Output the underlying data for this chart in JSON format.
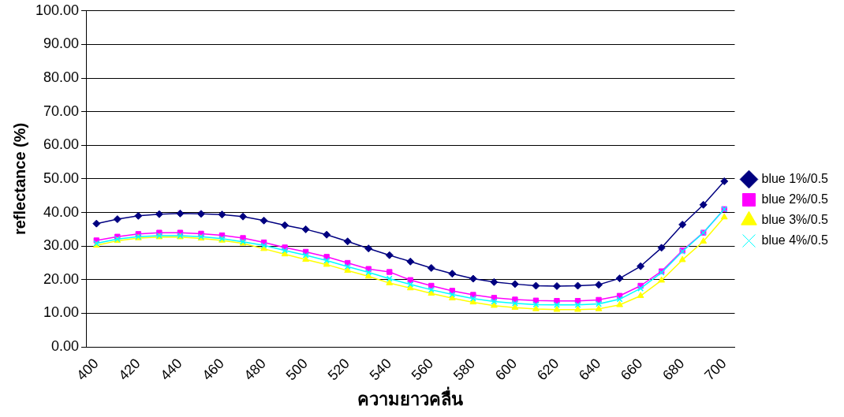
{
  "chart_data": {
    "type": "line",
    "xlabel": "ความยาวคลื่น",
    "ylabel": "reflectance (%)",
    "categories": [
      "400",
      null,
      "420",
      null,
      "440",
      null,
      "460",
      null,
      "480",
      null,
      "500",
      null,
      "520",
      null,
      "540",
      null,
      "560",
      null,
      "580",
      null,
      "600",
      null,
      "620",
      null,
      "640",
      null,
      "660",
      null,
      "680",
      null,
      "700"
    ],
    "ylim": [
      0,
      100
    ],
    "yticks": [
      {
        "value": 0,
        "label": "0.00"
      },
      {
        "value": 10,
        "label": "10.00"
      },
      {
        "value": 20,
        "label": "20.00"
      },
      {
        "value": 30,
        "label": "30.00"
      },
      {
        "value": 40,
        "label": "40.00"
      },
      {
        "value": 50,
        "label": "50.00"
      },
      {
        "value": 60,
        "label": "60.00"
      },
      {
        "value": 70,
        "label": "70.00"
      },
      {
        "value": 80,
        "label": "80.00"
      },
      {
        "value": 90,
        "label": "90.00"
      },
      {
        "value": 100,
        "label": "100.00"
      }
    ],
    "grid": "y",
    "legend": "right",
    "line_style": "solid",
    "series": [
      {
        "name": "blue 1%/0.5",
        "color": "#000080",
        "marker": "diamond",
        "values": [
          36.7,
          38.0,
          39.0,
          39.5,
          39.7,
          39.6,
          39.4,
          38.8,
          37.6,
          36.2,
          35.0,
          33.4,
          31.4,
          29.3,
          27.3,
          25.4,
          23.5,
          21.8,
          20.3,
          19.3,
          18.7,
          18.2,
          18.1,
          18.2,
          18.5,
          20.4,
          24.0,
          29.5,
          36.4,
          42.3,
          49.3
        ]
      },
      {
        "name": "blue 2%/0.5",
        "color": "#ff00ff",
        "marker": "square",
        "values": [
          31.7,
          32.8,
          33.6,
          34.0,
          34.0,
          33.7,
          33.2,
          32.4,
          31.1,
          29.6,
          28.3,
          26.8,
          25.0,
          23.2,
          22.3,
          19.9,
          18.2,
          16.7,
          15.5,
          14.6,
          14.1,
          13.8,
          13.7,
          13.7,
          14.0,
          15.2,
          18.2,
          22.5,
          28.7,
          34.0,
          41.0
        ]
      },
      {
        "name": "blue 3%/0.5",
        "color": "#ffff00",
        "marker": "triangle",
        "values": [
          30.2,
          31.6,
          32.4,
          32.7,
          32.7,
          32.3,
          31.7,
          30.8,
          29.2,
          27.6,
          26.0,
          24.5,
          22.7,
          21.0,
          19.0,
          17.5,
          15.9,
          14.5,
          13.3,
          12.3,
          11.7,
          11.3,
          11.1,
          11.1,
          11.3,
          12.5,
          15.2,
          19.8,
          25.9,
          31.4,
          38.6
        ]
      },
      {
        "name": "blue 4%/0.5",
        "color": "#00ffff",
        "marker": "cross",
        "values": [
          30.8,
          32.1,
          32.8,
          33.1,
          33.1,
          32.8,
          32.2,
          31.3,
          30.2,
          28.7,
          27.3,
          25.7,
          23.9,
          22.2,
          20.3,
          18.6,
          17.0,
          15.6,
          14.4,
          13.5,
          13.0,
          12.6,
          12.5,
          12.5,
          12.8,
          14.2,
          17.4,
          22.1,
          28.4,
          34.0,
          41.0
        ]
      }
    ]
  }
}
